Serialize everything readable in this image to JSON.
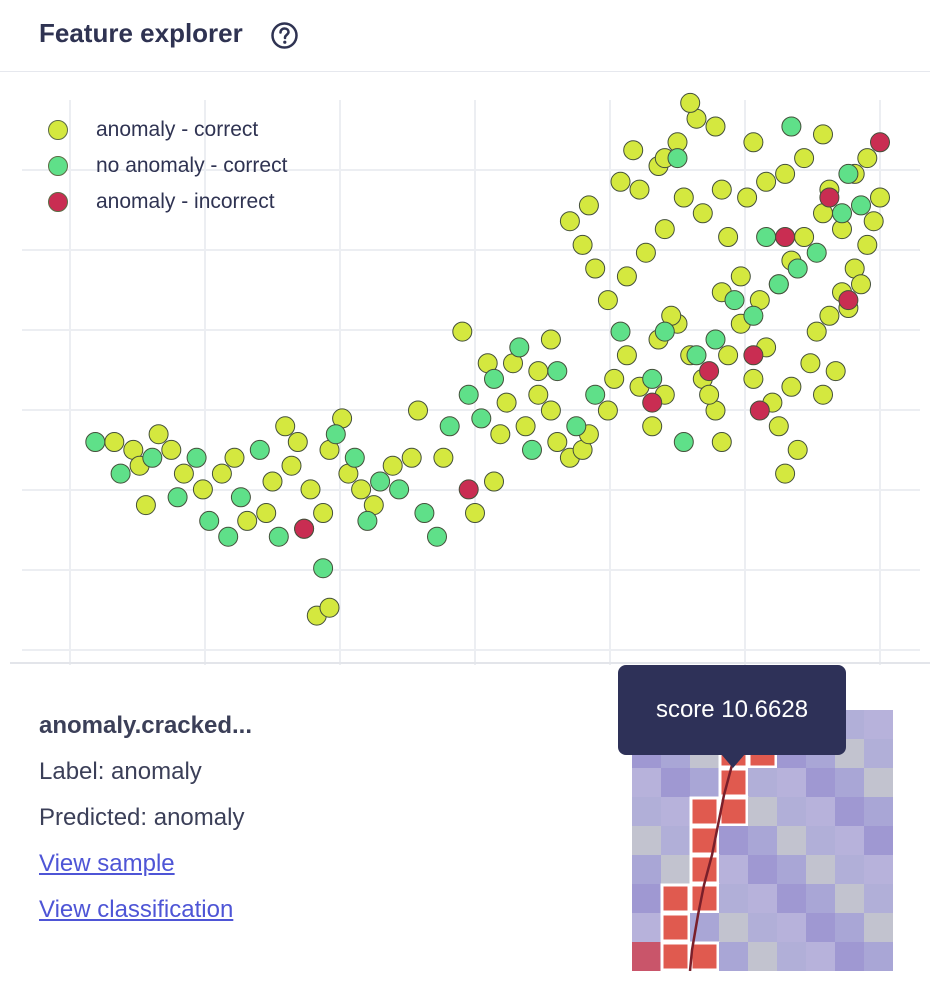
{
  "header": {
    "title": "Feature explorer",
    "help_icon": "question-circle-icon"
  },
  "legend": [
    {
      "label": "anomaly - correct",
      "color": "#d4e83f"
    },
    {
      "label": "no anomaly - correct",
      "color": "#5fe089"
    },
    {
      "label": "anomaly - incorrect",
      "color": "#c92d52"
    }
  ],
  "chart_data": {
    "type": "scatter",
    "title": "",
    "xlabel": "",
    "ylabel": "",
    "grid": true,
    "legend_position": "top-left",
    "xlim": [
      -0.1,
      6.3
    ],
    "ylim": [
      -0.3,
      6.8
    ],
    "series": [
      {
        "name": "anomaly - correct",
        "points": [
          [
            0.25,
            2.4
          ],
          [
            0.4,
            2.3
          ],
          [
            0.6,
            2.5
          ],
          [
            0.45,
            2.1
          ],
          [
            0.7,
            2.3
          ],
          [
            0.8,
            2.0
          ],
          [
            0.5,
            1.6
          ],
          [
            0.95,
            1.8
          ],
          [
            1.1,
            2.0
          ],
          [
            1.2,
            2.2
          ],
          [
            1.3,
            1.4
          ],
          [
            1.45,
            1.5
          ],
          [
            1.5,
            1.9
          ],
          [
            1.6,
            2.6
          ],
          [
            1.7,
            2.4
          ],
          [
            1.65,
            2.1
          ],
          [
            1.8,
            1.8
          ],
          [
            1.9,
            1.5
          ],
          [
            1.95,
            2.3
          ],
          [
            2.05,
            2.7
          ],
          [
            2.1,
            2.0
          ],
          [
            2.2,
            1.8
          ],
          [
            2.3,
            1.6
          ],
          [
            2.45,
            2.1
          ],
          [
            2.6,
            2.2
          ],
          [
            1.85,
            0.2
          ],
          [
            1.95,
            0.3
          ],
          [
            2.65,
            2.8
          ],
          [
            2.85,
            2.2
          ],
          [
            3.1,
            1.5
          ],
          [
            3.25,
            1.9
          ],
          [
            3.3,
            2.5
          ],
          [
            3.35,
            2.9
          ],
          [
            3.5,
            2.6
          ],
          [
            3.6,
            3.0
          ],
          [
            3.7,
            2.8
          ],
          [
            3.75,
            2.4
          ],
          [
            3.85,
            2.2
          ],
          [
            3.95,
            2.3
          ],
          [
            4.0,
            2.5
          ],
          [
            4.15,
            2.8
          ],
          [
            4.2,
            3.2
          ],
          [
            4.3,
            3.5
          ],
          [
            4.4,
            3.1
          ],
          [
            4.5,
            2.6
          ],
          [
            4.6,
            3.0
          ],
          [
            4.7,
            3.9
          ],
          [
            4.8,
            3.5
          ],
          [
            4.9,
            3.2
          ],
          [
            4.55,
            3.7
          ],
          [
            4.65,
            4.0
          ],
          [
            3.6,
            3.3
          ],
          [
            3.7,
            3.7
          ],
          [
            3.4,
            3.4
          ],
          [
            3.0,
            3.8
          ],
          [
            3.2,
            3.4
          ],
          [
            5.1,
            3.5
          ],
          [
            5.2,
            3.9
          ],
          [
            5.3,
            3.2
          ],
          [
            5.45,
            2.9
          ],
          [
            5.5,
            2.6
          ],
          [
            5.6,
            3.1
          ],
          [
            5.75,
            3.4
          ],
          [
            5.85,
            3.0
          ],
          [
            5.95,
            3.3
          ],
          [
            5.65,
            2.3
          ],
          [
            5.55,
            2.0
          ],
          [
            5.0,
            2.8
          ],
          [
            5.05,
            2.4
          ],
          [
            4.95,
            3.0
          ],
          [
            5.4,
            3.6
          ],
          [
            5.8,
            3.8
          ],
          [
            5.9,
            4.0
          ],
          [
            6.0,
            4.3
          ],
          [
            6.1,
            4.6
          ],
          [
            6.2,
            4.9
          ],
          [
            6.15,
            4.4
          ],
          [
            6.05,
            4.1
          ],
          [
            6.25,
            5.2
          ],
          [
            6.3,
            5.5
          ],
          [
            6.0,
            5.1
          ],
          [
            5.85,
            5.3
          ],
          [
            5.7,
            5.0
          ],
          [
            5.6,
            4.7
          ],
          [
            5.5,
            4.4
          ],
          [
            5.35,
            4.2
          ],
          [
            5.2,
            4.5
          ],
          [
            5.05,
            4.3
          ],
          [
            5.1,
            5.0
          ],
          [
            5.25,
            5.5
          ],
          [
            5.4,
            5.7
          ],
          [
            5.55,
            5.8
          ],
          [
            5.7,
            6.0
          ],
          [
            5.85,
            6.3
          ],
          [
            5.9,
            5.6
          ],
          [
            6.1,
            5.8
          ],
          [
            6.2,
            6.0
          ],
          [
            5.3,
            6.2
          ],
          [
            5.05,
            5.6
          ],
          [
            4.9,
            5.3
          ],
          [
            4.75,
            5.5
          ],
          [
            4.6,
            5.1
          ],
          [
            4.45,
            4.8
          ],
          [
            4.3,
            4.5
          ],
          [
            4.15,
            4.2
          ],
          [
            4.05,
            4.6
          ],
          [
            3.95,
            4.9
          ],
          [
            3.85,
            5.2
          ],
          [
            4.0,
            5.4
          ],
          [
            4.25,
            5.7
          ],
          [
            4.4,
            5.6
          ],
          [
            4.55,
            5.9
          ],
          [
            4.7,
            6.2
          ],
          [
            4.85,
            6.5
          ],
          [
            5.0,
            6.4
          ],
          [
            4.8,
            6.7
          ],
          [
            4.6,
            6.0
          ],
          [
            4.35,
            6.1
          ]
        ]
      },
      {
        "name": "no anomaly - correct",
        "points": [
          [
            0.1,
            2.4
          ],
          [
            0.3,
            2.0
          ],
          [
            0.55,
            2.2
          ],
          [
            0.75,
            1.7
          ],
          [
            0.9,
            2.2
          ],
          [
            1.0,
            1.4
          ],
          [
            1.15,
            1.2
          ],
          [
            1.25,
            1.7
          ],
          [
            1.4,
            2.3
          ],
          [
            1.55,
            1.2
          ],
          [
            1.75,
            1.3
          ],
          [
            1.9,
            0.8
          ],
          [
            2.0,
            2.5
          ],
          [
            2.15,
            2.2
          ],
          [
            2.25,
            1.4
          ],
          [
            2.35,
            1.9
          ],
          [
            2.5,
            1.8
          ],
          [
            2.7,
            1.5
          ],
          [
            2.8,
            1.2
          ],
          [
            2.9,
            2.6
          ],
          [
            3.05,
            3.0
          ],
          [
            3.15,
            2.7
          ],
          [
            3.25,
            3.2
          ],
          [
            3.45,
            3.6
          ],
          [
            3.55,
            2.3
          ],
          [
            3.75,
            3.3
          ],
          [
            3.9,
            2.6
          ],
          [
            4.05,
            3.0
          ],
          [
            4.25,
            3.8
          ],
          [
            4.5,
            3.2
          ],
          [
            4.6,
            3.8
          ],
          [
            4.75,
            2.4
          ],
          [
            4.85,
            3.5
          ],
          [
            5.0,
            3.7
          ],
          [
            5.15,
            4.2
          ],
          [
            5.3,
            4.0
          ],
          [
            5.5,
            4.4
          ],
          [
            5.65,
            4.6
          ],
          [
            5.8,
            4.8
          ],
          [
            6.0,
            5.3
          ],
          [
            6.05,
            5.8
          ],
          [
            6.15,
            5.4
          ],
          [
            5.4,
            5.0
          ],
          [
            4.7,
            6.0
          ],
          [
            5.6,
            6.4
          ]
        ]
      },
      {
        "name": "anomaly - incorrect",
        "points": [
          [
            1.75,
            1.3
          ],
          [
            3.05,
            1.8
          ],
          [
            4.5,
            2.9
          ],
          [
            4.95,
            3.3
          ],
          [
            5.35,
            2.8
          ],
          [
            5.3,
            3.5
          ],
          [
            6.05,
            4.2
          ],
          [
            5.55,
            5.0
          ],
          [
            5.9,
            5.5
          ],
          [
            6.3,
            6.2
          ]
        ]
      }
    ]
  },
  "selected_sample": {
    "name": "anomaly.cracked...",
    "label_line": "Label: anomaly",
    "predicted_line": "Predicted: anomaly",
    "view_sample": "View sample",
    "view_classification": "View classification"
  },
  "tooltip": {
    "text": "score 10.6628"
  }
}
